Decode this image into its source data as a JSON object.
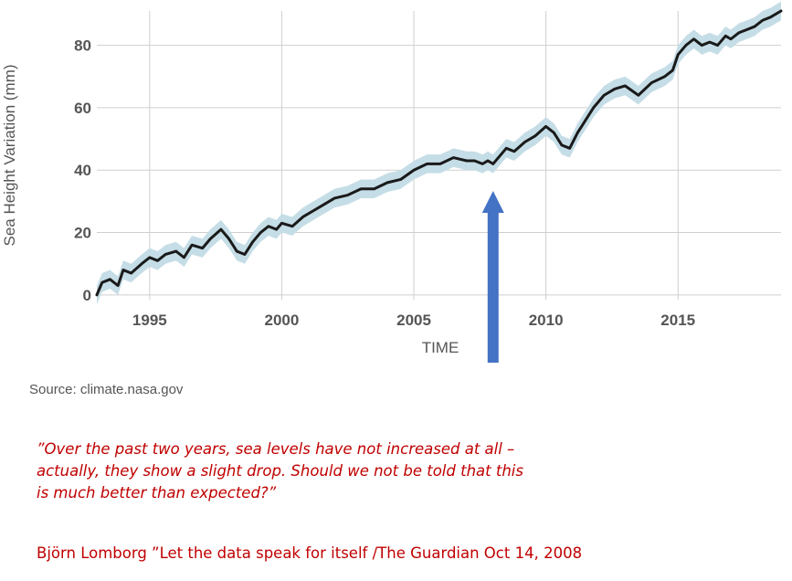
{
  "chart_data": {
    "type": "line",
    "ylabel": "Sea Height Variation (mm)",
    "xlabel": "TIME",
    "xlim": [
      1993.0,
      2018.9
    ],
    "ylim": [
      -1.5,
      91
    ],
    "x_ticks": [
      1995,
      2000,
      2005,
      2010,
      2015
    ],
    "y_ticks": [
      0,
      20,
      40,
      60,
      80
    ],
    "grid": true,
    "uncertainty_band": "±3 mm",
    "series": [
      {
        "x": [
          1993.0,
          1993.2,
          1993.5,
          1993.8,
          1994.0,
          1994.3,
          1994.7,
          1995.0,
          1995.3,
          1995.6,
          1996.0,
          1996.3,
          1996.6,
          1997.0,
          1997.3,
          1997.7,
          1998.0,
          1998.3,
          1998.6,
          1998.9,
          1999.2,
          1999.5,
          1999.8,
          2000.0,
          2000.4,
          2000.8,
          2001.2,
          2001.6,
          2002.0,
          2002.5,
          2003.0,
          2003.5,
          2004.0,
          2004.5,
          2005.0,
          2005.5,
          2006.0,
          2006.5,
          2007.0,
          2007.3,
          2007.6,
          2007.8,
          2008.0,
          2008.2,
          2008.5,
          2008.8,
          2009.2,
          2009.6,
          2010.0,
          2010.3,
          2010.6,
          2010.9,
          2011.2,
          2011.5,
          2011.8,
          2012.2,
          2012.6,
          2013.0,
          2013.5,
          2014.0,
          2014.5,
          2014.8,
          2015.0,
          2015.3,
          2015.6,
          2015.9,
          2016.2,
          2016.5,
          2016.8,
          2017.0,
          2017.3,
          2017.6,
          2017.9,
          2018.2,
          2018.5,
          2018.9
        ],
        "values": [
          0,
          4,
          5,
          3,
          8,
          7,
          10,
          12,
          11,
          13,
          14,
          12,
          16,
          15,
          18,
          21,
          18,
          14,
          13,
          17,
          20,
          22,
          21,
          23,
          22,
          25,
          27,
          29,
          31,
          32,
          34,
          34,
          36,
          37,
          40,
          42,
          42,
          44,
          43,
          43,
          42,
          43,
          42,
          44,
          47,
          46,
          49,
          51,
          54,
          52,
          48,
          47,
          52,
          56,
          60,
          64,
          66,
          67,
          64,
          68,
          70,
          72,
          77,
          80,
          82,
          80,
          81,
          80,
          83,
          82,
          84,
          85,
          86,
          88,
          89,
          91
        ],
        "color": "#1a1a1a",
        "band_color": "#c5dde6"
      }
    ],
    "annotation": {
      "type": "arrow",
      "x": 2008.0,
      "color": "#4472c4"
    }
  },
  "source_text": "Source: climate.nasa.gov",
  "quote": "”Over the past two years, sea levels have not increased at all –\nactually, they show a slight drop. Should we not be told that this\nis much better than expected?”",
  "attribution": "Björn Lomborg ”Let the data speak for itself /The Guardian Oct 14, 2008"
}
